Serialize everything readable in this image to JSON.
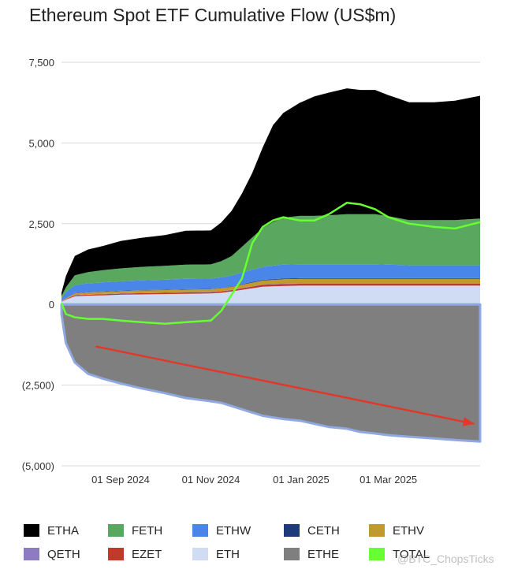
{
  "chart_data": {
    "type": "area",
    "title": "Ethereum Spot ETF Cumulative Flow (US$m)",
    "xlabel": "",
    "ylabel": "",
    "ylim": [
      -5000,
      7500
    ],
    "y_ticks": [
      {
        "value": 7500,
        "label": "7,500"
      },
      {
        "value": 5000,
        "label": "5,000"
      },
      {
        "value": 2500,
        "label": "2,500"
      },
      {
        "value": 0,
        "label": "0"
      },
      {
        "value": -2500,
        "label": "(2,500)"
      },
      {
        "value": -5000,
        "label": "(5,000)"
      }
    ],
    "x_ticks": [
      {
        "date": "2024-09-01",
        "label": "01 Sep 2024"
      },
      {
        "date": "2024-11-01",
        "label": "01 Nov 2024"
      },
      {
        "date": "2025-01-01",
        "label": "01 Jan 2025"
      },
      {
        "date": "2025-03-01",
        "label": "01 Mar 2025"
      }
    ],
    "x_range": [
      "2024-07-23",
      "2025-05-02"
    ],
    "grid": true,
    "legend_position": "bottom",
    "dates": [
      "2024-07-23",
      "2024-07-26",
      "2024-08-01",
      "2024-08-10",
      "2024-08-20",
      "2024-09-01",
      "2024-09-15",
      "2024-10-01",
      "2024-10-15",
      "2024-11-01",
      "2024-11-08",
      "2024-11-15",
      "2024-11-22",
      "2024-11-29",
      "2024-12-06",
      "2024-12-13",
      "2024-12-20",
      "2024-12-31",
      "2025-01-10",
      "2025-01-20",
      "2025-02-01",
      "2025-02-10",
      "2025-02-20",
      "2025-03-01",
      "2025-03-15",
      "2025-04-01",
      "2025-04-15",
      "2025-05-02"
    ],
    "series": [
      {
        "name": "ETHA",
        "color": "#000000",
        "values": [
          100,
          350,
          600,
          700,
          750,
          850,
          900,
          950,
          1050,
          1050,
          1200,
          1400,
          1650,
          2000,
          2500,
          3000,
          3250,
          3500,
          3700,
          3800,
          3900,
          3850,
          3850,
          3750,
          3650,
          3650,
          3700,
          3800
        ]
      },
      {
        "name": "FETH",
        "color": "#5aa85f",
        "values": [
          80,
          150,
          300,
          350,
          380,
          400,
          420,
          430,
          440,
          440,
          500,
          600,
          800,
          1000,
          1200,
          1350,
          1450,
          1500,
          1500,
          1520,
          1550,
          1550,
          1550,
          1500,
          1400,
          1400,
          1400,
          1450
        ]
      },
      {
        "name": "ETHW",
        "color": "#4a86e8",
        "values": [
          80,
          180,
          250,
          270,
          280,
          290,
          300,
          310,
          320,
          320,
          330,
          340,
          360,
          380,
          400,
          420,
          430,
          430,
          430,
          430,
          430,
          430,
          430,
          420,
          400,
          400,
          400,
          400
        ]
      },
      {
        "name": "CETH",
        "color": "#1f3a7a",
        "values": [
          2,
          5,
          10,
          10,
          10,
          10,
          10,
          10,
          10,
          10,
          10,
          12,
          15,
          18,
          20,
          22,
          22,
          22,
          22,
          22,
          22,
          22,
          22,
          22,
          22,
          22,
          22,
          22
        ]
      },
      {
        "name": "ETHV",
        "color": "#c09a2e",
        "values": [
          5,
          20,
          50,
          60,
          65,
          70,
          75,
          75,
          80,
          80,
          85,
          90,
          100,
          110,
          120,
          130,
          140,
          140,
          140,
          140,
          140,
          140,
          140,
          140,
          140,
          140,
          140,
          140
        ]
      },
      {
        "name": "QETH",
        "color": "#8e7cc3",
        "values": [
          2,
          5,
          10,
          10,
          10,
          10,
          10,
          10,
          10,
          10,
          10,
          10,
          10,
          10,
          10,
          10,
          10,
          10,
          10,
          10,
          10,
          10,
          10,
          10,
          10,
          10,
          10,
          10
        ]
      },
      {
        "name": "EZET",
        "color": "#c0392b",
        "values": [
          10,
          20,
          30,
          32,
          35,
          35,
          38,
          40,
          40,
          40,
          42,
          45,
          50,
          55,
          60,
          60,
          60,
          60,
          60,
          60,
          60,
          60,
          60,
          60,
          60,
          60,
          60,
          60
        ]
      },
      {
        "name": "ETH",
        "color": "#cfdcf3",
        "values": [
          80,
          150,
          250,
          270,
          280,
          300,
          310,
          320,
          330,
          340,
          360,
          400,
          450,
          500,
          550,
          560,
          570,
          580,
          580,
          580,
          580,
          580,
          580,
          580,
          580,
          580,
          580,
          580
        ]
      },
      {
        "name": "ETHE",
        "color": "#7f7f7f",
        "values": [
          -300,
          -1200,
          -1800,
          -2150,
          -2300,
          -2450,
          -2600,
          -2750,
          -2900,
          -3000,
          -3050,
          -3150,
          -3250,
          -3350,
          -3450,
          -3500,
          -3550,
          -3600,
          -3700,
          -3800,
          -3850,
          -3950,
          -4000,
          -4050,
          -4100,
          -4150,
          -4200,
          -4250
        ]
      },
      {
        "name": "TOTAL",
        "color": "#66ff33",
        "type": "line",
        "values": [
          50,
          -300,
          -400,
          -450,
          -450,
          -500,
          -550,
          -600,
          -550,
          -500,
          -200,
          300,
          800,
          1900,
          2400,
          2600,
          2700,
          2600,
          2600,
          2800,
          3150,
          3100,
          2950,
          2700,
          2500,
          2400,
          2350,
          2550
        ]
      }
    ],
    "annotations": [
      {
        "type": "arrow",
        "color": "#e0392b",
        "from": {
          "date": "2024-08-15",
          "value": -1300
        },
        "to": {
          "date": "2025-04-28",
          "value": -3700
        }
      }
    ]
  },
  "legend": [
    "ETHA",
    "FETH",
    "ETHW",
    "CETH",
    "ETHV",
    "QETH",
    "EZET",
    "ETH",
    "ETHE",
    "TOTAL"
  ],
  "watermark": "@BTC_ChopsTicks"
}
